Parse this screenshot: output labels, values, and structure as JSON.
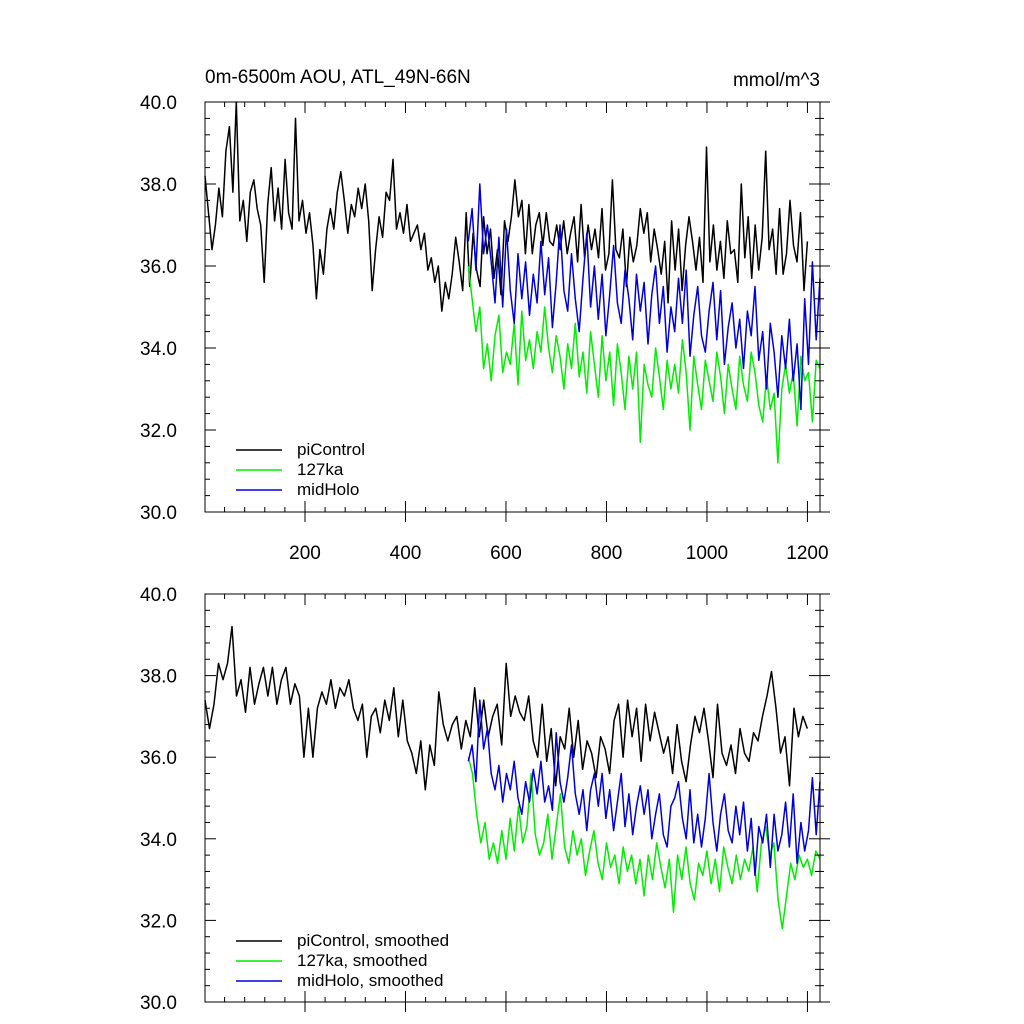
{
  "chart_data": [
    {
      "type": "line",
      "title": "0m-6500m AOU, ATL_49N-66N",
      "units": "mmol/m^3",
      "xlabel": "",
      "ylabel": "",
      "xlim": [
        1,
        1225
      ],
      "ylim": [
        30.0,
        40.0
      ],
      "y_ticks": [
        "30.0",
        "32.0",
        "34.0",
        "36.0",
        "38.0",
        "40.0"
      ],
      "x_ticks": [
        "200",
        "400",
        "600",
        "800",
        "1000",
        "1200"
      ],
      "x_ticks_shown": true,
      "legend_position": "bottom-left",
      "series": [
        {
          "name": "piControl",
          "color": "#000000",
          "x_start": 1,
          "x_end": 1200,
          "values": [
            38.2,
            37.3,
            36.4,
            37.0,
            37.9,
            37.2,
            38.8,
            39.4,
            37.8,
            40.0,
            37.1,
            37.6,
            36.6,
            37.8,
            38.1,
            37.4,
            37.0,
            35.6,
            37.5,
            38.4,
            37.1,
            37.9,
            36.9,
            38.6,
            37.3,
            36.9,
            39.6,
            37.1,
            37.6,
            36.8,
            37.3,
            36.5,
            35.2,
            36.4,
            35.8,
            36.9,
            37.4,
            36.9,
            37.8,
            38.3,
            37.6,
            36.8,
            37.5,
            37.2,
            37.9,
            37.4,
            38.0,
            37.1,
            35.4,
            36.4,
            37.2,
            36.7,
            37.8,
            37.6,
            38.6,
            36.9,
            37.3,
            36.8,
            37.5,
            36.6,
            36.8,
            37.0,
            36.4,
            36.8,
            35.9,
            36.2,
            35.6,
            36.0,
            34.9,
            35.6,
            35.2,
            35.8,
            36.7,
            36.1,
            35.4,
            37.3,
            35.5,
            36.8,
            35.9,
            35.5,
            37.2,
            36.3,
            36.9,
            35.7,
            36.4,
            35.3,
            37.1,
            36.6,
            37.2,
            38.1,
            37.2,
            37.6,
            36.3,
            37.5,
            36.3,
            37.0,
            37.3,
            36.5,
            37.3,
            36.6,
            36.5,
            37.0,
            36.4,
            37.1,
            36.3,
            36.8,
            37.2,
            36.1,
            37.5,
            36.2,
            37.0,
            36.4,
            36.9,
            36.2,
            37.4,
            35.9,
            36.3,
            38.1,
            36.4,
            36.2,
            36.9,
            35.5,
            36.7,
            36.1,
            36.5,
            37.4,
            36.8,
            37.3,
            36.1,
            36.9,
            36.4,
            35.8,
            36.6,
            35.1,
            37.1,
            35.9,
            36.9,
            35.4,
            36.5,
            37.2,
            36.6,
            35.9,
            36.7,
            35.6,
            38.9,
            36.1,
            37.0,
            35.9,
            36.6,
            35.7,
            37.1,
            36.3,
            36.4,
            35.6,
            38.0,
            36.2,
            37.2,
            35.7,
            37.0,
            35.9,
            36.7,
            38.8,
            36.4,
            36.9,
            35.8,
            37.4,
            35.8,
            36.3,
            37.6,
            36.5,
            36.1,
            37.3,
            35.4,
            36.6
          ]
        },
        {
          "name": "127ka",
          "color": "#00ee00",
          "x_start": 525,
          "x_end": 1225,
          "values": [
            36.0,
            35.2,
            34.4,
            35.0,
            33.5,
            34.1,
            33.2,
            34.3,
            34.8,
            33.4,
            33.9,
            33.6,
            34.6,
            33.1,
            34.9,
            33.7,
            34.2,
            33.5,
            34.4,
            33.9,
            35.0,
            34.0,
            33.4,
            34.3,
            33.8,
            33.0,
            34.1,
            33.5,
            34.6,
            33.3,
            33.9,
            32.9,
            34.4,
            33.6,
            32.8,
            34.3,
            33.2,
            33.9,
            32.6,
            34.1,
            33.4,
            32.5,
            33.8,
            33.0,
            33.9,
            31.7,
            33.6,
            33.1,
            32.8,
            34.0,
            33.3,
            32.5,
            33.7,
            33.0,
            33.6,
            32.9,
            34.2,
            33.4,
            32.0,
            33.8,
            33.1,
            32.5,
            33.7,
            33.2,
            32.7,
            33.9,
            33.3,
            32.4,
            33.6,
            33.0,
            32.5,
            33.8,
            33.1,
            32.7,
            33.9,
            33.4,
            32.6,
            32.2,
            33.3,
            32.5,
            32.9,
            31.2,
            33.0,
            33.6,
            32.9,
            33.4,
            32.1,
            33.8,
            33.2,
            33.4,
            32.2,
            33.7,
            33.5
          ]
        },
        {
          "name": "midHolo",
          "color": "#0000dd",
          "x_start": 525,
          "x_end": 1225,
          "values": [
            36.6,
            37.4,
            35.9,
            38.0,
            36.3,
            37.0,
            36.1,
            35.1,
            36.7,
            35.0,
            36.9,
            35.4,
            34.6,
            36.3,
            35.2,
            36.1,
            34.8,
            35.8,
            35.1,
            36.6,
            35.3,
            36.2,
            34.5,
            35.6,
            37.0,
            35.4,
            34.9,
            36.3,
            35.2,
            34.4,
            35.7,
            36.8,
            35.0,
            36.0,
            34.7,
            35.8,
            34.3,
            35.3,
            36.5,
            35.1,
            34.6,
            35.9,
            35.2,
            34.2,
            35.8,
            34.9,
            35.6,
            34.1,
            35.3,
            36.0,
            34.6,
            35.5,
            33.9,
            35.0,
            34.4,
            35.7,
            34.6,
            35.9,
            33.8,
            34.8,
            35.5,
            34.3,
            33.9,
            34.9,
            35.6,
            34.2,
            35.4,
            33.6,
            34.5,
            35.1,
            34.0,
            34.7,
            33.5,
            34.9,
            34.3,
            35.5,
            33.7,
            34.4,
            33.0,
            34.6,
            33.9,
            32.8,
            34.3,
            33.5,
            34.7,
            33.2,
            34.1,
            32.5,
            35.2,
            33.6,
            36.1,
            34.2,
            35.7
          ]
        }
      ]
    },
    {
      "type": "line",
      "title": "",
      "units": "",
      "xlabel": "",
      "ylabel": "",
      "xlim": [
        1,
        1225
      ],
      "ylim": [
        30.0,
        40.0
      ],
      "y_ticks": [
        "30.0",
        "32.0",
        "34.0",
        "36.0",
        "38.0",
        "40.0"
      ],
      "x_ticks": [],
      "x_ticks_shown": false,
      "legend_position": "bottom-left",
      "series": [
        {
          "name": "piControl, smoothed",
          "color": "#000000",
          "x_start": 1,
          "x_end": 1200,
          "values": [
            37.4,
            36.7,
            37.3,
            38.3,
            37.9,
            38.3,
            39.2,
            37.5,
            37.9,
            37.1,
            38.2,
            37.3,
            37.8,
            38.2,
            37.5,
            38.2,
            37.3,
            37.9,
            38.2,
            37.3,
            37.8,
            37.5,
            36.0,
            37.2,
            36.0,
            37.2,
            37.6,
            37.3,
            37.9,
            37.2,
            37.7,
            37.5,
            37.9,
            37.2,
            36.9,
            37.3,
            36.0,
            37.0,
            37.2,
            36.6,
            37.4,
            36.9,
            37.7,
            36.5,
            37.4,
            36.4,
            36.1,
            35.6,
            36.4,
            35.2,
            36.3,
            35.8,
            37.6,
            36.8,
            36.4,
            36.8,
            37.0,
            36.2,
            36.9,
            36.5,
            37.7,
            36.5,
            37.4,
            36.5,
            37.0,
            37.3,
            36.3,
            38.3,
            37.0,
            37.5,
            37.1,
            36.9,
            37.5,
            36.4,
            36.0,
            37.3,
            35.9,
            36.7,
            35.3,
            36.5,
            36.2,
            37.2,
            36.0,
            36.9,
            35.7,
            36.4,
            36.1,
            35.5,
            36.5,
            36.2,
            35.6,
            36.9,
            37.3,
            36.0,
            37.4,
            36.5,
            37.2,
            35.9,
            37.3,
            36.4,
            37.1,
            36.6,
            36.1,
            36.5,
            35.6,
            36.8,
            35.9,
            35.4,
            36.3,
            37.0,
            36.6,
            37.2,
            36.4,
            35.5,
            37.3,
            36.1,
            35.8,
            36.3,
            35.6,
            36.7,
            36.1,
            35.9,
            36.6,
            36.4,
            37.0,
            37.5,
            38.1,
            37.2,
            36.1,
            36.5,
            35.3,
            37.2,
            36.5,
            37.0,
            36.7
          ]
        },
        {
          "name": "127ka, smoothed",
          "color": "#00ee00",
          "x_start": 525,
          "x_end": 1225,
          "values": [
            36.0,
            35.6,
            34.6,
            33.9,
            34.4,
            33.5,
            33.9,
            33.4,
            34.2,
            33.5,
            34.5,
            33.7,
            34.8,
            33.9,
            34.3,
            35.6,
            34.1,
            33.6,
            33.9,
            34.6,
            33.5,
            34.3,
            35.1,
            33.8,
            33.4,
            34.2,
            33.6,
            34.0,
            33.1,
            33.7,
            34.2,
            33.4,
            33.0,
            33.9,
            33.3,
            33.6,
            32.9,
            33.8,
            33.2,
            33.6,
            32.9,
            33.5,
            32.6,
            33.6,
            33.0,
            33.9,
            33.3,
            32.8,
            33.5,
            32.2,
            33.6,
            33.0,
            33.8,
            32.9,
            32.5,
            33.4,
            33.1,
            33.7,
            32.9,
            33.5,
            32.7,
            33.8,
            33.3,
            32.9,
            33.6,
            33.0,
            33.5,
            33.2,
            33.8,
            32.7,
            33.9,
            34.3,
            33.6,
            33.9,
            32.5,
            31.8,
            32.6,
            33.4,
            33.0,
            33.6,
            33.3,
            33.5,
            33.1,
            33.7,
            33.5
          ]
        },
        {
          "name": "midHolo, smoothed",
          "color": "#0000dd",
          "x_start": 525,
          "x_end": 1225,
          "values": [
            35.9,
            36.3,
            35.4,
            37.4,
            36.2,
            36.7,
            35.6,
            35.2,
            35.8,
            34.9,
            35.6,
            35.2,
            35.9,
            35.0,
            34.6,
            35.4,
            34.9,
            35.7,
            35.1,
            35.9,
            34.9,
            35.3,
            34.7,
            36.6,
            35.4,
            34.9,
            35.5,
            36.3,
            35.1,
            34.6,
            35.2,
            34.2,
            35.2,
            35.6,
            34.8,
            35.6,
            34.5,
            35.2,
            34.2,
            34.9,
            35.6,
            34.3,
            35.1,
            34.1,
            34.8,
            35.3,
            34.6,
            35.2,
            34.0,
            34.6,
            35.1,
            34.1,
            33.8,
            34.8,
            35.0,
            35.4,
            34.5,
            34.0,
            35.2,
            33.9,
            34.6,
            33.8,
            34.5,
            35.6,
            34.4,
            33.7,
            34.6,
            35.1,
            34.2,
            33.9,
            34.8,
            34.1,
            34.9,
            33.7,
            34.5,
            33.1,
            34.3,
            33.9,
            34.6,
            33.3,
            34.6,
            33.7,
            34.1,
            34.9,
            33.8,
            35.1,
            33.4,
            34.4,
            33.7,
            34.2,
            35.5,
            34.1,
            35.4
          ]
        }
      ]
    }
  ]
}
